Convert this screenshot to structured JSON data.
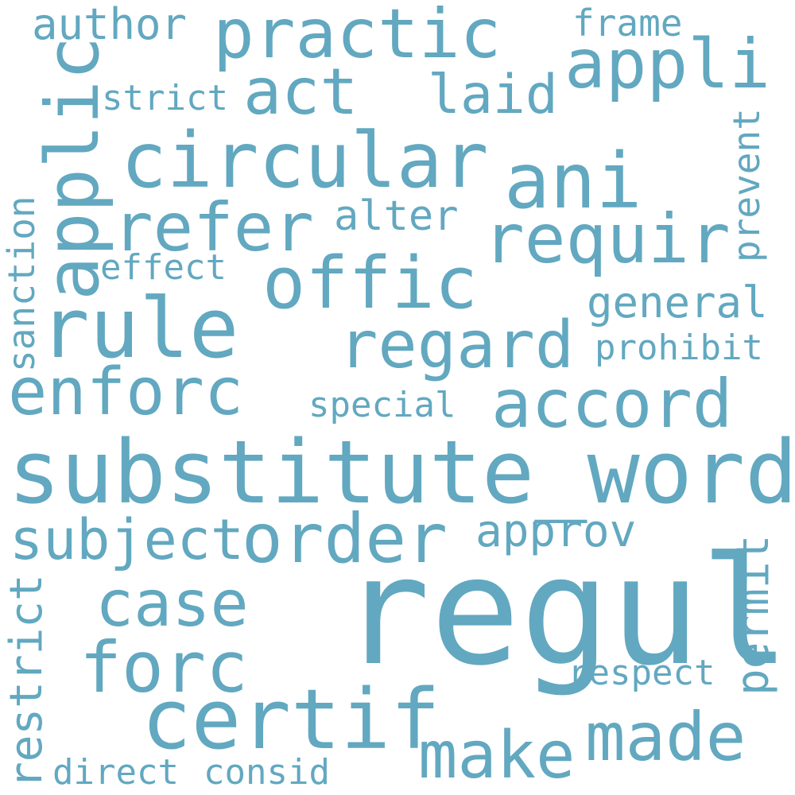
{
  "colors": {
    "background": "#ffffff",
    "word": "#62a8c0"
  },
  "words": [
    {
      "text": "regul",
      "rotated": false
    },
    {
      "text": "substitute_word",
      "rotated": false
    },
    {
      "text": "circular",
      "rotated": false
    },
    {
      "text": "certif",
      "rotated": false
    },
    {
      "text": "rule",
      "rotated": false
    },
    {
      "text": "practic",
      "rotated": false
    },
    {
      "text": "appli",
      "rotated": false
    },
    {
      "text": "applic",
      "rotated": true
    },
    {
      "text": "ani",
      "rotated": false
    },
    {
      "text": "refer",
      "rotated": false
    },
    {
      "text": "requir",
      "rotated": false
    },
    {
      "text": "offic",
      "rotated": false
    },
    {
      "text": "regard",
      "rotated": false
    },
    {
      "text": "enforc",
      "rotated": false
    },
    {
      "text": "accord",
      "rotated": false
    },
    {
      "text": "order",
      "rotated": false
    },
    {
      "text": "subject",
      "rotated": false
    },
    {
      "text": "case",
      "rotated": false
    },
    {
      "text": "forc",
      "rotated": false
    },
    {
      "text": "made",
      "rotated": false
    },
    {
      "text": "make",
      "rotated": false
    },
    {
      "text": "act",
      "rotated": false
    },
    {
      "text": "laid",
      "rotated": false
    },
    {
      "text": "approv",
      "rotated": false
    },
    {
      "text": "author",
      "rotated": false
    },
    {
      "text": "general",
      "rotated": false
    },
    {
      "text": "alter",
      "rotated": false
    },
    {
      "text": "frame",
      "rotated": false
    },
    {
      "text": "strict",
      "rotated": false
    },
    {
      "text": "effect",
      "rotated": false
    },
    {
      "text": "special",
      "rotated": false
    },
    {
      "text": "prohibit",
      "rotated": false
    },
    {
      "text": "respect",
      "rotated": false
    },
    {
      "text": "direct",
      "rotated": false
    },
    {
      "text": "consid",
      "rotated": false
    },
    {
      "text": "restrict",
      "rotated": true
    },
    {
      "text": "permit",
      "rotated": true
    },
    {
      "text": "sanction",
      "rotated": true
    },
    {
      "text": "prevent",
      "rotated": true
    }
  ]
}
